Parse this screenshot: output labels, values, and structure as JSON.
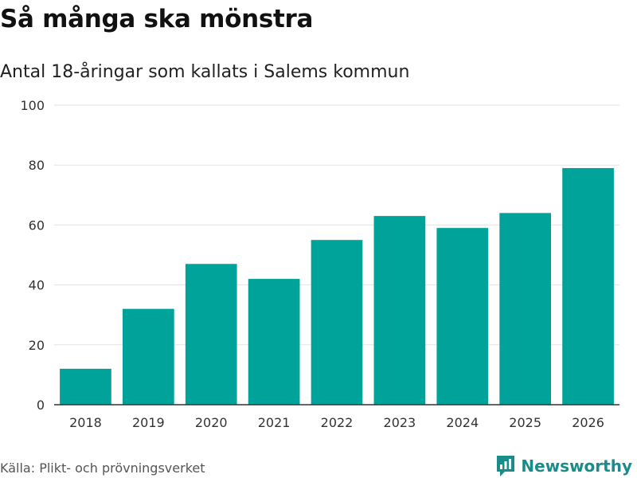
{
  "header": {
    "title": "Så många ska mönstra",
    "subtitle": "Antal 18-åringar som kallats i Salems kommun"
  },
  "footer": {
    "source": "Källa: Plikt- och prövningsverket",
    "brand": "Newsworthy"
  },
  "colors": {
    "bar": "#00a39a",
    "grid": "#e3e3e3",
    "axis": "#333333",
    "brand": "#1a8c8a"
  },
  "chart_data": {
    "type": "bar",
    "title": "Så många ska mönstra",
    "subtitle": "Antal 18-åringar som kallats i Salems kommun",
    "xlabel": "",
    "ylabel": "",
    "categories": [
      "2018",
      "2019",
      "2020",
      "2021",
      "2022",
      "2023",
      "2024",
      "2025",
      "2026"
    ],
    "values": [
      12,
      32,
      47,
      42,
      55,
      63,
      59,
      64,
      79
    ],
    "ylim": [
      0,
      100
    ],
    "yticks": [
      0,
      20,
      40,
      60,
      80,
      100
    ],
    "grid": true,
    "legend": "none"
  }
}
